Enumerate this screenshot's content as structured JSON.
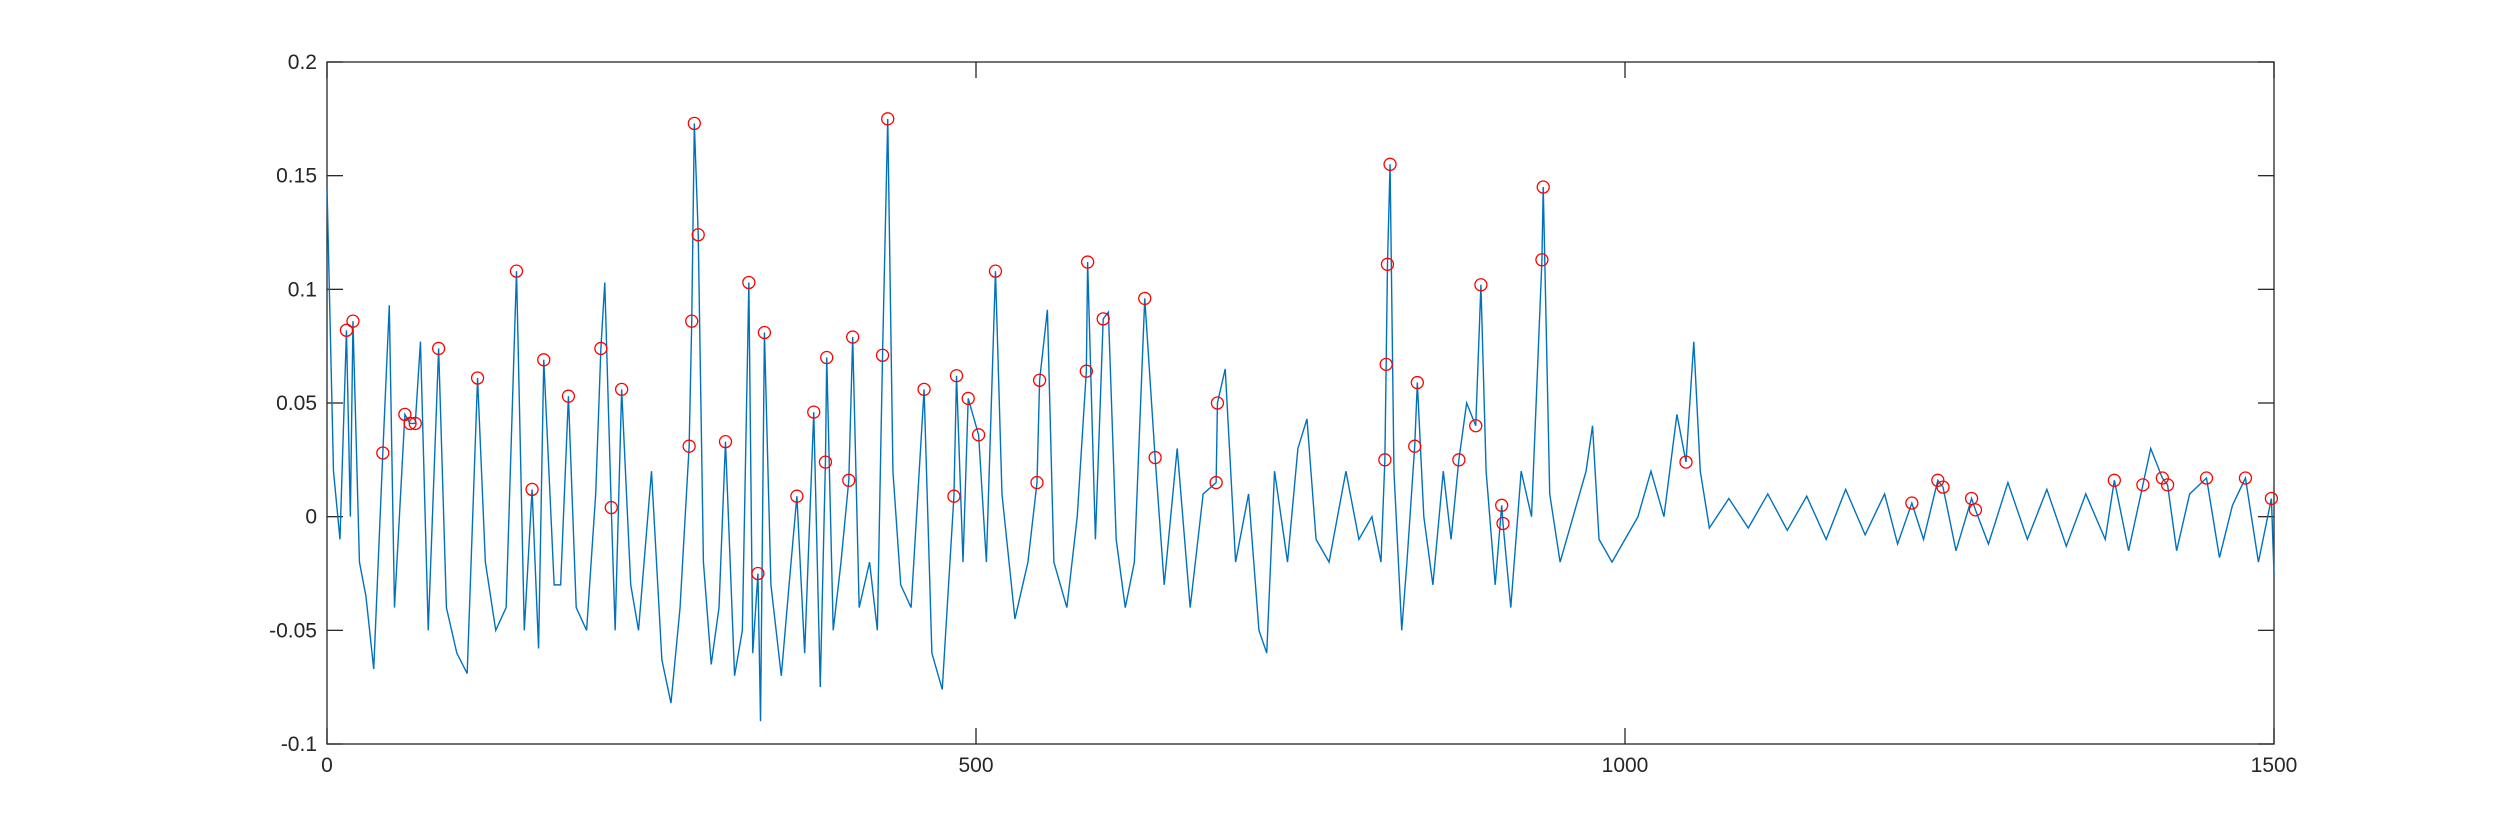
{
  "chart_data": {
    "type": "line",
    "xlim": [
      0,
      1500
    ],
    "ylim": [
      -0.1,
      0.2
    ],
    "xticks": [
      0,
      500,
      1000,
      1500
    ],
    "yticks": [
      -0.1,
      -0.05,
      0,
      0.05,
      0.1,
      0.15,
      0.2
    ],
    "series": [
      {
        "color": "#0072bd",
        "style": "line",
        "x": [
          0,
          5,
          10,
          15,
          18,
          20,
          25,
          30,
          36,
          43,
          48,
          52,
          60,
          64,
          68,
          72,
          78,
          86,
          92,
          100,
          108,
          116,
          122,
          130,
          138,
          146,
          152,
          158,
          163,
          167,
          175,
          180,
          186,
          192,
          200,
          207,
          211,
          214,
          219,
          222,
          227,
          234,
          240,
          250,
          258,
          265,
          272,
          279,
          281,
          283,
          286,
          290,
          296,
          302,
          307,
          314,
          320,
          325,
          328,
          332,
          334,
          337,
          342,
          350,
          356,
          362,
          368,
          375,
          380,
          384,
          385,
          390,
          396,
          402,
          405,
          410,
          418,
          424,
          428,
          432,
          436,
          442,
          450,
          460,
          466,
          474,
          483,
          485,
          490,
          494,
          502,
          508,
          515,
          520,
          530,
          540,
          547,
          549,
          555,
          560,
          570,
          578,
          585,
          586,
          592,
          598,
          602,
          608,
          615,
          622,
          630,
          638,
          645,
          655,
          665,
          675,
          685,
          686,
          692,
          700,
          710,
          718,
          724,
          730,
          740,
          748,
          755,
          762,
          772,
          785,
          795,
          805,
          812,
          815,
          816,
          817,
          819,
          822,
          828,
          832,
          838,
          840,
          845,
          852,
          860,
          866,
          872,
          878,
          885,
          889,
          893,
          900,
          905,
          906,
          912,
          920,
          928,
          936,
          937,
          942,
          950,
          960,
          970,
          975,
          980,
          990,
          1000,
          1010,
          1020,
          1030,
          1040,
          1047,
          1053,
          1058,
          1065,
          1080,
          1095,
          1110,
          1125,
          1140,
          1155,
          1170,
          1185,
          1200,
          1210,
          1221,
          1230,
          1241,
          1245,
          1255,
          1267,
          1270,
          1280,
          1295,
          1310,
          1325,
          1340,
          1355,
          1370,
          1377,
          1388,
          1399,
          1405,
          1414,
          1418,
          1425,
          1435,
          1448,
          1458,
          1468,
          1478,
          1488,
          1498,
          1500
        ],
        "values": [
          0.145,
          0.02,
          -0.01,
          0.082,
          0.0,
          0.086,
          -0.02,
          -0.035,
          -0.067,
          0.028,
          0.093,
          -0.04,
          0.045,
          0.041,
          0.041,
          0.077,
          -0.05,
          0.074,
          -0.04,
          -0.06,
          -0.069,
          0.061,
          -0.02,
          -0.05,
          -0.04,
          0.108,
          -0.05,
          0.012,
          -0.058,
          0.069,
          -0.03,
          -0.03,
          0.053,
          -0.04,
          -0.05,
          0.01,
          0.074,
          0.103,
          0.004,
          -0.05,
          0.056,
          -0.03,
          -0.05,
          0.02,
          -0.063,
          -0.082,
          -0.04,
          0.031,
          0.086,
          0.173,
          0.124,
          -0.02,
          -0.065,
          -0.04,
          0.033,
          -0.07,
          -0.05,
          0.103,
          -0.06,
          -0.025,
          -0.09,
          0.081,
          -0.03,
          -0.07,
          -0.03,
          0.009,
          -0.06,
          0.046,
          -0.075,
          0.024,
          0.07,
          -0.05,
          -0.02,
          0.016,
          0.079,
          -0.04,
          -0.02,
          -0.05,
          0.071,
          0.175,
          0.02,
          -0.03,
          -0.04,
          0.056,
          -0.06,
          -0.076,
          0.009,
          0.062,
          -0.02,
          0.052,
          0.036,
          -0.02,
          0.108,
          0.01,
          -0.045,
          -0.02,
          0.015,
          0.06,
          0.091,
          -0.02,
          -0.04,
          0.0,
          0.064,
          0.112,
          -0.01,
          0.087,
          0.09,
          -0.01,
          -0.04,
          -0.02,
          0.096,
          0.026,
          -0.03,
          0.03,
          -0.04,
          0.01,
          0.015,
          0.05,
          0.065,
          -0.02,
          0.01,
          -0.05,
          -0.06,
          0.02,
          -0.02,
          0.03,
          0.043,
          -0.01,
          -0.02,
          0.02,
          -0.01,
          0.0,
          -0.02,
          0.025,
          0.067,
          0.111,
          0.155,
          0.02,
          -0.05,
          -0.02,
          0.031,
          0.059,
          0.0,
          -0.03,
          0.02,
          -0.01,
          0.025,
          0.05,
          0.04,
          0.102,
          0.02,
          -0.03,
          0.005,
          -0.003,
          -0.04,
          0.02,
          0.0,
          0.113,
          0.145,
          0.01,
          -0.02,
          0.0,
          0.02,
          0.04,
          -0.01,
          -0.02,
          -0.01,
          0.0,
          0.02,
          0.0,
          0.045,
          0.024,
          0.077,
          0.02,
          -0.005,
          0.008,
          -0.005,
          0.01,
          -0.006,
          0.009,
          -0.01,
          0.012,
          -0.008,
          0.01,
          -0.012,
          0.006,
          -0.01,
          0.016,
          0.013,
          -0.015,
          0.008,
          0.003,
          -0.012,
          0.015,
          -0.01,
          0.012,
          -0.013,
          0.01,
          -0.01,
          0.016,
          -0.015,
          0.014,
          0.03,
          0.017,
          0.014,
          -0.015,
          0.01,
          0.017,
          -0.018,
          0.005,
          0.017,
          -0.02,
          0.008,
          -0.025
        ]
      },
      {
        "color": "#ff0000",
        "style": "circle",
        "x": [
          15,
          20,
          43,
          60,
          64,
          68,
          86,
          116,
          146,
          158,
          167,
          186,
          211,
          219,
          227,
          279,
          281,
          283,
          286,
          307,
          325,
          332,
          337,
          362,
          375,
          384,
          385,
          402,
          405,
          428,
          432,
          460,
          483,
          485,
          494,
          502,
          515,
          547,
          549,
          585,
          586,
          598,
          630,
          638,
          685,
          686,
          815,
          816,
          817,
          819,
          838,
          840,
          872,
          885,
          889,
          905,
          906,
          936,
          937,
          1047,
          1221,
          1241,
          1245,
          1267,
          1270,
          1377,
          1399,
          1414,
          1418,
          1448,
          1478,
          1498
        ],
        "values": [
          0.082,
          0.086,
          0.028,
          0.045,
          0.041,
          0.041,
          0.074,
          0.061,
          0.108,
          0.012,
          0.069,
          0.053,
          0.074,
          0.004,
          0.056,
          0.031,
          0.086,
          0.173,
          0.124,
          0.033,
          0.103,
          -0.025,
          0.081,
          0.009,
          0.046,
          0.024,
          0.07,
          0.016,
          0.079,
          0.071,
          0.175,
          0.056,
          0.009,
          0.062,
          0.052,
          0.036,
          0.108,
          0.015,
          0.06,
          0.064,
          0.112,
          0.087,
          0.096,
          0.026,
          0.015,
          0.05,
          0.025,
          0.067,
          0.111,
          0.155,
          0.031,
          0.059,
          0.025,
          0.04,
          0.102,
          0.005,
          -0.003,
          0.113,
          0.145,
          0.024,
          0.006,
          0.016,
          0.013,
          0.008,
          0.003,
          0.016,
          0.014,
          0.017,
          0.014,
          0.017,
          0.017,
          0.008
        ]
      }
    ]
  }
}
